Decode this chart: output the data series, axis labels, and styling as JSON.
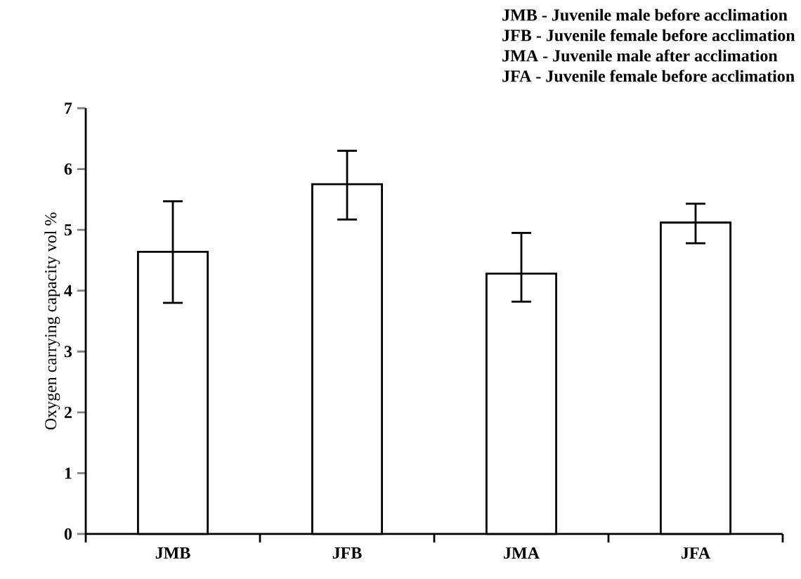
{
  "chart_data": {
    "type": "bar",
    "ylabel": "Oxygen carrying capacity vol %",
    "categories": [
      "JMB",
      "JFB",
      "JMA",
      "JFA"
    ],
    "values": [
      4.64,
      5.75,
      4.28,
      5.12
    ],
    "errors": [
      [
        3.8,
        5.47
      ],
      [
        5.17,
        6.3
      ],
      [
        3.82,
        4.95
      ],
      [
        4.78,
        5.43
      ]
    ],
    "color": "#ffffff",
    "ylim": [
      0,
      7
    ],
    "yticks": [
      0,
      1,
      2,
      3,
      4,
      5,
      6,
      7
    ],
    "grid": false,
    "annotations": [
      "JMB - Juvenile male before acclimation",
      "JFB  - Juvenile female before acclimation",
      "JMA - Juvenile male after acclimation",
      "JFA  - Juvenile female before acclimation"
    ]
  }
}
